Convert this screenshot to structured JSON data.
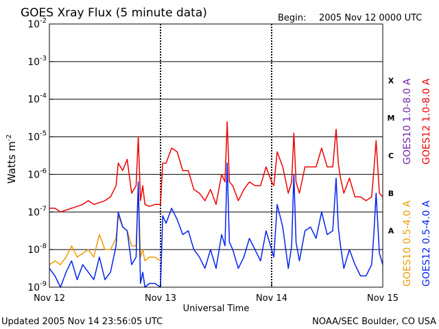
{
  "chart_data": {
    "type": "line",
    "title": "GOES Xray Flux (5 minute data)",
    "begin_label": "Begin:",
    "begin_value": "2005 Nov 12 0000 UTC",
    "xlabel": "Universal Time",
    "ylabel_base": "Watts m",
    "ylabel_exp": "-2",
    "x_ticks": [
      {
        "label": "Nov 12",
        "day": 0
      },
      {
        "label": "Nov 13",
        "day": 1
      },
      {
        "label": "Nov 14",
        "day": 2
      },
      {
        "label": "Nov 15",
        "day": 3
      }
    ],
    "xlim_days": [
      0,
      3
    ],
    "ylim_log10": [
      -9,
      -2
    ],
    "y_ticks": [
      {
        "base": "10",
        "exp": "-9",
        "log": -9
      },
      {
        "base": "10",
        "exp": "-8",
        "log": -8
      },
      {
        "base": "10",
        "exp": "-7",
        "log": -7
      },
      {
        "base": "10",
        "exp": "-6",
        "log": -6
      },
      {
        "base": "10",
        "exp": "-5",
        "log": -5
      },
      {
        "base": "10",
        "exp": "-4",
        "log": -4
      },
      {
        "base": "10",
        "exp": "-3",
        "log": -3
      },
      {
        "base": "10",
        "exp": "-2",
        "log": -2
      }
    ],
    "flare_classes": [
      {
        "label": "X",
        "log": -3.5
      },
      {
        "label": "M",
        "log": -4.5
      },
      {
        "label": "C",
        "log": -5.5
      },
      {
        "label": "B",
        "log": -6.5
      },
      {
        "label": "A",
        "log": -7.5
      }
    ],
    "legend": {
      "goes10_long": "GOES10 1.0-8.0 A",
      "goes12_long": "GOES12 1.0-8.0 A",
      "goes10_short": "GOES10 0.5-4.0 A",
      "goes12_short": "GOES12 0.5-4.0 A"
    },
    "colors": {
      "goes12_long": "#ee0000",
      "goes10_long": "#7722aa",
      "goes12_short": "#0022ee",
      "goes10_short": "#ee9900",
      "grid": "#000000",
      "day_divider": "#000000"
    },
    "series": [
      {
        "name": "GOES12 1.0-8.0 A",
        "key": "goes12_long",
        "x": [
          0,
          0.05,
          0.1,
          0.15,
          0.2,
          0.25,
          0.3,
          0.35,
          0.4,
          0.45,
          0.5,
          0.55,
          0.6,
          0.62,
          0.66,
          0.7,
          0.74,
          0.78,
          0.8,
          0.82,
          0.84,
          0.86,
          0.9,
          0.95,
          1.0,
          1.02,
          1.05,
          1.1,
          1.15,
          1.2,
          1.25,
          1.3,
          1.35,
          1.4,
          1.45,
          1.5,
          1.55,
          1.58,
          1.6,
          1.62,
          1.65,
          1.7,
          1.75,
          1.8,
          1.85,
          1.9,
          1.95,
          2.0,
          2.02,
          2.05,
          2.1,
          2.15,
          2.18,
          2.2,
          2.22,
          2.25,
          2.3,
          2.35,
          2.4,
          2.45,
          2.5,
          2.55,
          2.58,
          2.6,
          2.62,
          2.65,
          2.7,
          2.75,
          2.8,
          2.85,
          2.9,
          2.92,
          2.94,
          2.97,
          3.0
        ],
        "log_values": [
          -6.9,
          -6.9,
          -7.0,
          -6.95,
          -6.9,
          -6.85,
          -6.8,
          -6.7,
          -6.8,
          -6.75,
          -6.7,
          -6.6,
          -6.3,
          -5.7,
          -5.9,
          -5.6,
          -6.5,
          -6.3,
          -5.0,
          -6.7,
          -6.3,
          -6.8,
          -6.85,
          -6.8,
          -6.8,
          -5.7,
          -5.7,
          -5.3,
          -5.4,
          -5.9,
          -5.9,
          -6.4,
          -6.5,
          -6.7,
          -6.4,
          -6.8,
          -6.0,
          -6.2,
          -4.6,
          -6.2,
          -6.3,
          -6.7,
          -6.4,
          -6.2,
          -6.3,
          -6.3,
          -5.8,
          -6.2,
          -6.3,
          -5.4,
          -5.8,
          -6.5,
          -6.2,
          -4.9,
          -6.2,
          -6.5,
          -5.8,
          -5.8,
          -5.8,
          -5.3,
          -5.8,
          -5.8,
          -4.8,
          -5.7,
          -6.1,
          -6.5,
          -6.1,
          -6.6,
          -6.6,
          -6.7,
          -6.6,
          -5.9,
          -5.1,
          -6.5,
          -6.6
        ]
      },
      {
        "name": "GOES12 0.5-4.0 A",
        "key": "goes12_short",
        "x": [
          0,
          0.05,
          0.1,
          0.15,
          0.2,
          0.25,
          0.3,
          0.35,
          0.4,
          0.45,
          0.5,
          0.55,
          0.6,
          0.62,
          0.66,
          0.7,
          0.74,
          0.78,
          0.8,
          0.82,
          0.84,
          0.86,
          0.9,
          0.95,
          1.0,
          1.02,
          1.05,
          1.1,
          1.15,
          1.2,
          1.25,
          1.3,
          1.35,
          1.4,
          1.45,
          1.5,
          1.55,
          1.58,
          1.6,
          1.62,
          1.65,
          1.7,
          1.75,
          1.8,
          1.85,
          1.9,
          1.95,
          2.0,
          2.02,
          2.05,
          2.1,
          2.15,
          2.18,
          2.2,
          2.22,
          2.25,
          2.3,
          2.35,
          2.4,
          2.45,
          2.5,
          2.55,
          2.58,
          2.6,
          2.62,
          2.65,
          2.7,
          2.75,
          2.8,
          2.85,
          2.9,
          2.92,
          2.94,
          2.97,
          3.0
        ],
        "log_values": [
          -8.5,
          -8.7,
          -9.0,
          -8.6,
          -8.3,
          -8.8,
          -8.4,
          -8.6,
          -8.8,
          -8.2,
          -8.8,
          -8.6,
          -7.9,
          -7.0,
          -7.4,
          -7.5,
          -8.4,
          -8.2,
          -6.2,
          -8.9,
          -8.6,
          -9.0,
          -8.9,
          -8.9,
          -9.0,
          -7.1,
          -7.3,
          -6.9,
          -7.2,
          -7.6,
          -7.5,
          -8.0,
          -8.2,
          -8.5,
          -8.0,
          -8.5,
          -7.6,
          -7.9,
          -5.7,
          -7.8,
          -8.0,
          -8.5,
          -8.2,
          -7.7,
          -8.0,
          -8.3,
          -7.5,
          -8.0,
          -8.2,
          -6.8,
          -7.4,
          -8.5,
          -7.9,
          -6.0,
          -7.8,
          -8.3,
          -7.5,
          -7.4,
          -7.7,
          -7.0,
          -7.6,
          -7.5,
          -6.1,
          -7.4,
          -7.9,
          -8.5,
          -8.0,
          -8.4,
          -8.7,
          -8.7,
          -8.4,
          -7.6,
          -6.5,
          -8.1,
          -8.4
        ]
      },
      {
        "name": "GOES10 0.5-4.0 A",
        "key": "goes10_short",
        "x": [
          0,
          0.05,
          0.1,
          0.15,
          0.2,
          0.25,
          0.3,
          0.35,
          0.4,
          0.45,
          0.5,
          0.55,
          0.6,
          0.62,
          0.66,
          0.7,
          0.74,
          0.78,
          0.8,
          0.82,
          0.84,
          0.86,
          0.9,
          0.95,
          1.0
        ],
        "log_values": [
          -8.4,
          -8.3,
          -8.4,
          -8.2,
          -7.9,
          -8.2,
          -8.1,
          -8.0,
          -8.2,
          -7.6,
          -8.0,
          -8.0,
          -7.7,
          -7.1,
          -7.4,
          -7.5,
          -7.9,
          -7.9,
          -6.3,
          -8.2,
          -8.0,
          -8.3,
          -8.2,
          -8.2,
          -8.3
        ]
      }
    ]
  },
  "footer": {
    "updated": "Updated 2005 Nov 14 23:56:05 UTC",
    "credit": "NOAA/SEC Boulder, CO USA"
  }
}
